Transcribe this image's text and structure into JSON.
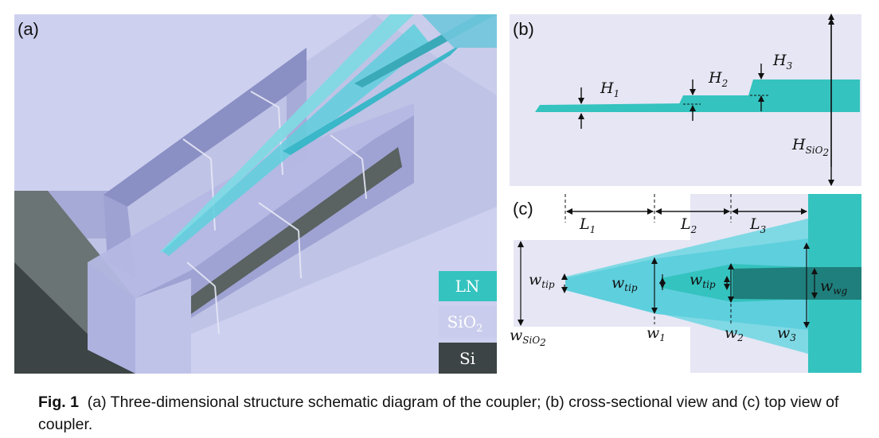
{
  "panels": {
    "a": {
      "label": "(a)"
    },
    "b": {
      "label": "(b)",
      "h1": "H",
      "h1_sub": "1",
      "h2": "H",
      "h2_sub": "2",
      "h3": "H",
      "h3_sub": "3",
      "hsio2": "H",
      "hsio2_sub": "SiO",
      "hsio2_sub2": "2"
    },
    "c": {
      "label": "(c)",
      "l1": "L",
      "l1_sub": "1",
      "l2": "L",
      "l2_sub": "2",
      "l3": "L",
      "l3_sub": "3",
      "wtip": "w",
      "wtip_sub": "tip",
      "w1": "w",
      "w1_sub": "1",
      "w2": "w",
      "w2_sub": "2",
      "w3": "w",
      "w3_sub": "3",
      "wwg": "w",
      "wwg_sub": "wg",
      "wsio2": "w",
      "wsio2_sub": "SiO",
      "wsio2_sub2": "2"
    }
  },
  "legend": {
    "items": [
      {
        "label": "LN",
        "sub": "",
        "color": "#34c3bf",
        "text_color": "#ffffff"
      },
      {
        "label": "SiO",
        "sub": "2",
        "color": "#c9ccec",
        "text_color": "#ffffff"
      },
      {
        "label": "Si",
        "sub": "",
        "color": "#3d4445",
        "text_color": "#ffffff"
      }
    ]
  },
  "caption": {
    "fig_label": "Fig. 1",
    "text": "(a) Three-dimensional structure schematic diagram of the coupler; (b) cross-sectional view and (c) top view of coupler."
  },
  "colors": {
    "ln": "#34c3bf",
    "ln_light": "#7fd9e4",
    "ln_dark": "#1f7f7c",
    "sio2": "#e4e4f3",
    "sio2_3d": "#c4c7e6",
    "si": "#3d4445"
  }
}
